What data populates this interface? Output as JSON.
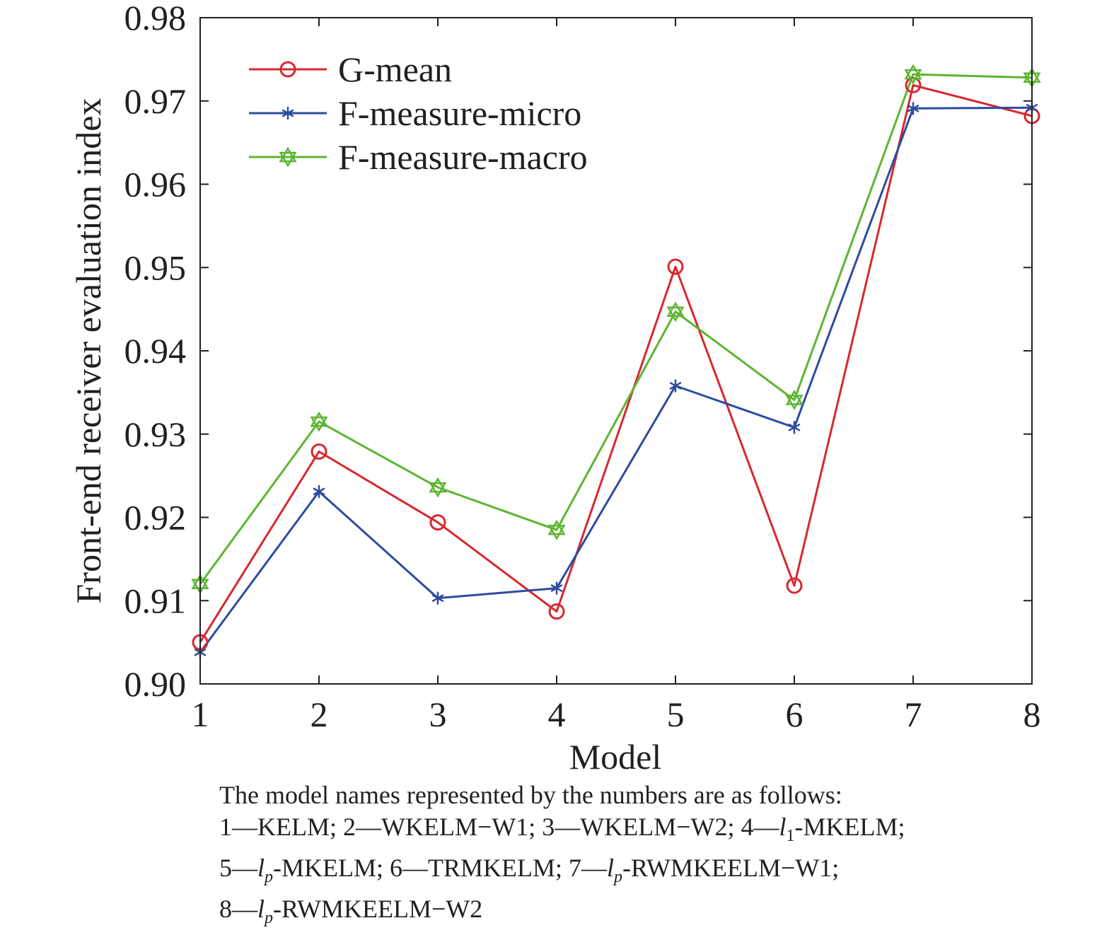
{
  "chart_data": {
    "type": "line",
    "xlabel": "Model",
    "ylabel": "Front-end receiver evaluation index",
    "x": [
      1,
      2,
      3,
      4,
      5,
      6,
      7,
      8
    ],
    "xlim": [
      1,
      8
    ],
    "ylim": [
      0.9,
      0.98
    ],
    "x_ticks": [
      "1",
      "2",
      "3",
      "4",
      "5",
      "6",
      "7",
      "8"
    ],
    "y_ticks": [
      "0.90",
      "0.91",
      "0.92",
      "0.93",
      "0.94",
      "0.95",
      "0.96",
      "0.97",
      "0.98"
    ],
    "grid": false,
    "legend_position": "top-left",
    "series": [
      {
        "name": "G-mean",
        "color": "#d7282f",
        "marker": "circle",
        "values": [
          0.905,
          0.9279,
          0.9194,
          0.9087,
          0.9501,
          0.9118,
          0.9719,
          0.9682
        ]
      },
      {
        "name": "F-measure-micro",
        "color": "#2e4ba0",
        "marker": "asterisk",
        "values": [
          0.9038,
          0.9231,
          0.9103,
          0.9115,
          0.9358,
          0.9308,
          0.9691,
          0.9692
        ]
      },
      {
        "name": "F-measure-macro",
        "color": "#5cb531",
        "marker": "hexagram",
        "values": [
          0.912,
          0.9315,
          0.9236,
          0.9185,
          0.9447,
          0.9341,
          0.9732,
          0.9728
        ]
      }
    ]
  },
  "caption": {
    "intro": "The model names represented by the numbers are as follows:",
    "line1": [
      {
        "t": "1—KELM; 2—WKELM−W1; 3—WKELM−W2; 4—"
      },
      {
        "t": "l",
        "i": true
      },
      {
        "t": "1",
        "sub": true
      },
      {
        "t": "-MKELM;"
      }
    ],
    "line2": [
      {
        "t": "5—"
      },
      {
        "t": "l",
        "i": true
      },
      {
        "t": "p",
        "sub": true,
        "i": true
      },
      {
        "t": "-MKELM; 6—TRMKELM; 7—"
      },
      {
        "t": "l",
        "i": true
      },
      {
        "t": "p",
        "sub": true,
        "i": true
      },
      {
        "t": "-RWMKEELM−W1;"
      }
    ],
    "line3": [
      {
        "t": "8—"
      },
      {
        "t": "l",
        "i": true
      },
      {
        "t": "p",
        "sub": true,
        "i": true
      },
      {
        "t": "-RWMKEELM−W2"
      }
    ]
  }
}
